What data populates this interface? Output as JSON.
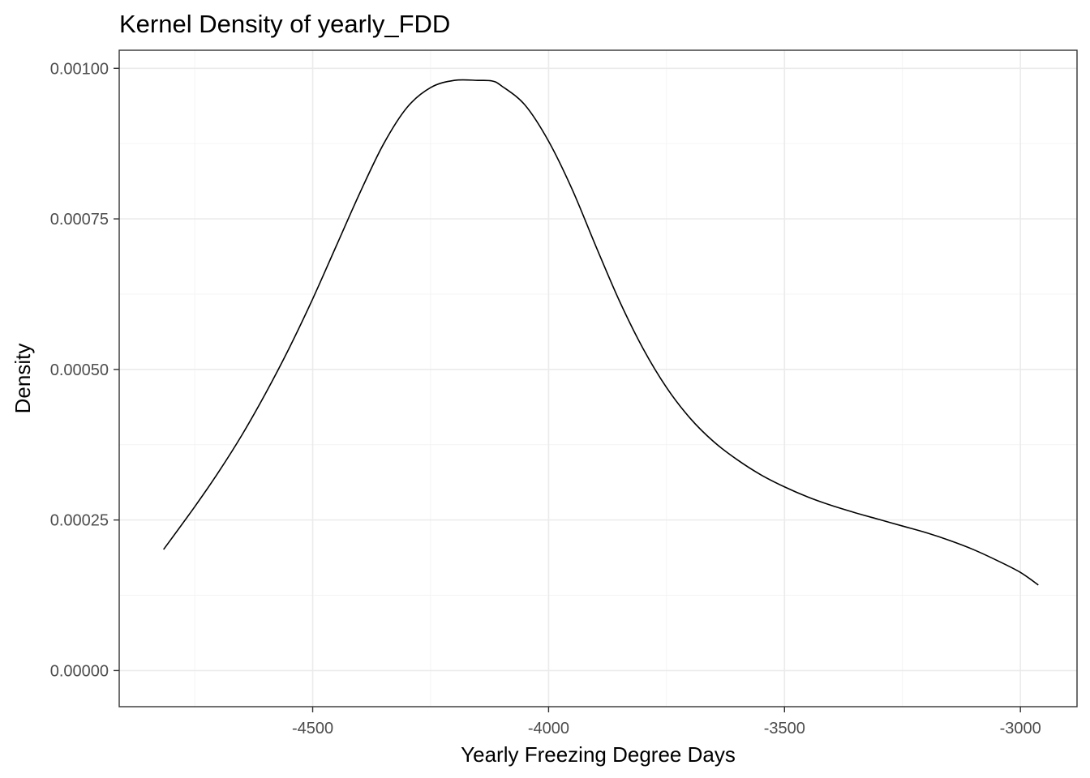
{
  "chart_data": {
    "type": "line",
    "title": "Kernel Density of yearly_FDD",
    "xlabel": "Yearly Freezing Degree Days",
    "ylabel": "Density",
    "xlim": [
      -4910,
      -2880
    ],
    "ylim": [
      -6e-05,
      0.00103
    ],
    "xticks": [
      -4500,
      -4000,
      -3500,
      -3000
    ],
    "xtick_labels": [
      "-4500",
      "-4000",
      "-3500",
      "-3000"
    ],
    "yticks": [
      0,
      0.00025,
      0.0005,
      0.00075,
      0.001
    ],
    "ytick_labels": [
      "0.00000",
      "0.00025",
      "0.00050",
      "0.00075",
      "0.00100"
    ],
    "grid": true,
    "legend": "none",
    "series": [
      {
        "color": "#000000",
        "x": [
          -4816,
          -4750,
          -4700,
          -4650,
          -4600,
          -4550,
          -4500,
          -4450,
          -4400,
          -4350,
          -4300,
          -4250,
          -4200,
          -4150,
          -4120,
          -4100,
          -4050,
          -4000,
          -3950,
          -3900,
          -3850,
          -3800,
          -3750,
          -3700,
          -3650,
          -3600,
          -3550,
          -3500,
          -3450,
          -3400,
          -3350,
          -3300,
          -3250,
          -3200,
          -3150,
          -3100,
          -3050,
          -3000,
          -2962
        ],
        "y": [
          0.000201,
          0.000272,
          0.000329,
          0.000391,
          0.00046,
          0.000535,
          0.000617,
          0.000705,
          0.000793,
          0.000874,
          0.000935,
          0.000968,
          0.00098,
          0.00098,
          0.000979,
          0.000971,
          0.000939,
          0.000879,
          0.000799,
          0.000705,
          0.000614,
          0.000535,
          0.00047,
          0.000419,
          0.00038,
          0.00035,
          0.000325,
          0.000305,
          0.000288,
          0.000274,
          0.000262,
          0.000251,
          0.00024,
          0.000229,
          0.000216,
          0.000201,
          0.000183,
          0.000163,
          0.000142
        ]
      }
    ]
  }
}
